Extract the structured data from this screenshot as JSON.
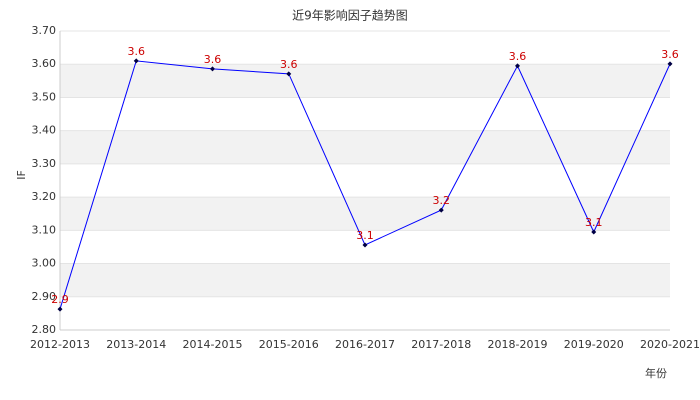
{
  "chart_data": {
    "type": "line",
    "title": "近9年影响因子趋势图",
    "x_label": "年份",
    "y_label": "IF",
    "categories": [
      "2012-2013",
      "2013-2014",
      "2014-2015",
      "2015-2016",
      "2016-2017",
      "2017-2018",
      "2018-2019",
      "2019-2020",
      "2020-2021"
    ],
    "series": [
      {
        "name": "IF",
        "color": "#0000ff",
        "marker_color": "#000044",
        "label_color": "#cc0000",
        "values": [
          2.863,
          3.61,
          3.586,
          3.571,
          3.056,
          3.161,
          3.595,
          3.095,
          3.601
        ],
        "value_labels": [
          "2.9",
          "3.6",
          "3.6",
          "3.6",
          "3.1",
          "3.2",
          "3.6",
          "3.1",
          "3.6"
        ]
      }
    ],
    "ylim": [
      2.8,
      3.7
    ],
    "yticks": [
      {
        "value": 2.8,
        "label": "2.80"
      },
      {
        "value": 2.9,
        "label": "2.90"
      },
      {
        "value": 3.0,
        "label": "3.00"
      },
      {
        "value": 3.1,
        "label": "3.10"
      },
      {
        "value": 3.2,
        "label": "3.20"
      },
      {
        "value": 3.3,
        "label": "3.30"
      },
      {
        "value": 3.4,
        "label": "3.40"
      },
      {
        "value": 3.5,
        "label": "3.50"
      },
      {
        "value": 3.6,
        "label": "3.60"
      },
      {
        "value": 3.7,
        "label": "3.70"
      }
    ],
    "grid": true
  }
}
